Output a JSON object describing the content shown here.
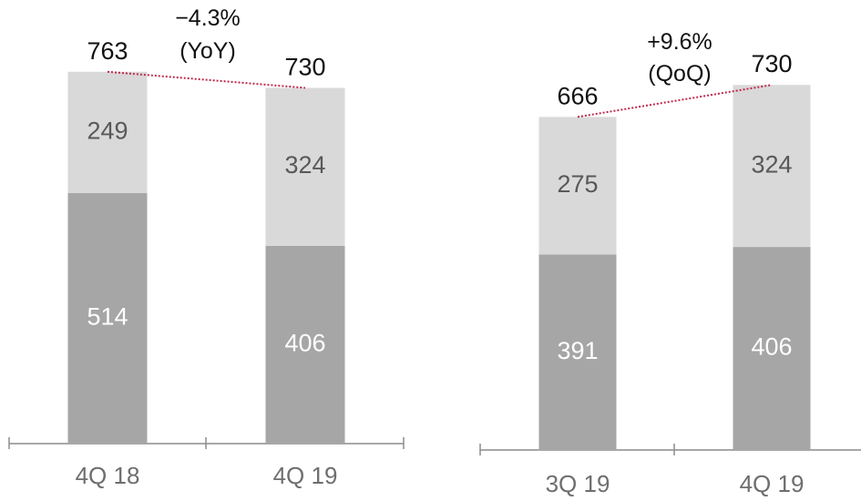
{
  "chart_data": [
    {
      "type": "bar",
      "stacked": true,
      "categories": [
        "4Q 18",
        "4Q 19"
      ],
      "series": [
        {
          "values": [
            514,
            406
          ],
          "color": "#a6a6a6",
          "label_color": "#ffffff"
        },
        {
          "values": [
            249,
            324
          ],
          "color": "#d9d9d9",
          "label_color": "#595959"
        }
      ],
      "totals": [
        763,
        730
      ],
      "change": {
        "value": "−4.3%",
        "basis": "(YoY)"
      },
      "trend_line_color": "#c0284b",
      "grid": false,
      "legend": "none"
    },
    {
      "type": "bar",
      "stacked": true,
      "categories": [
        "3Q 19",
        "4Q 19"
      ],
      "series": [
        {
          "values": [
            391,
            406
          ],
          "color": "#a6a6a6",
          "label_color": "#ffffff"
        },
        {
          "values": [
            275,
            324
          ],
          "color": "#d9d9d9",
          "label_color": "#595959"
        }
      ],
      "totals": [
        666,
        730
      ],
      "change": {
        "value": "+9.6%",
        "basis": "(QoQ)"
      },
      "trend_line_color": "#c0284b",
      "grid": false,
      "legend": "none"
    }
  ]
}
